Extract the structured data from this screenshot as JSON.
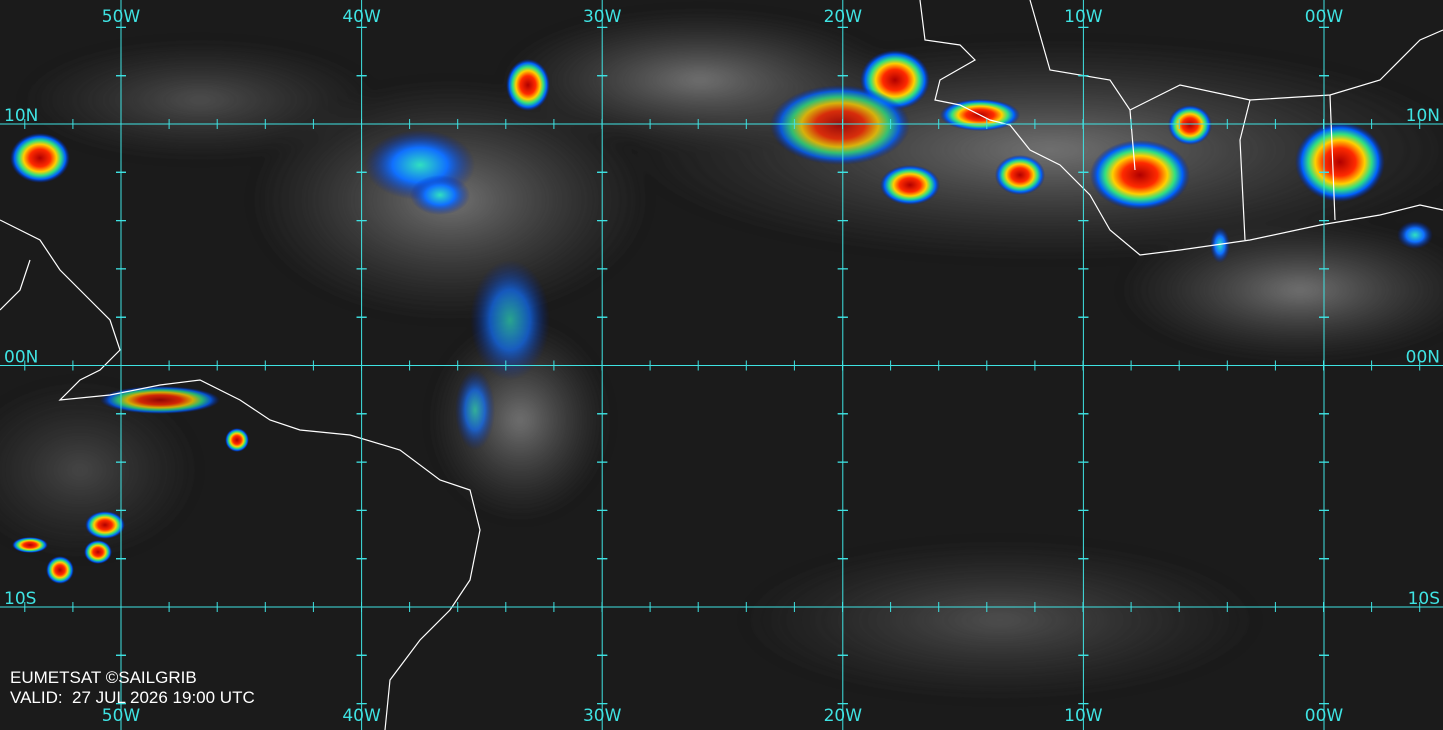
{
  "grid": {
    "longitudes": [
      "50W",
      "40W",
      "30W",
      "20W",
      "10W",
      "00W"
    ],
    "latitudes": [
      "10N",
      "00N",
      "10S"
    ]
  },
  "credit": "EUMETSAT ©SAILGRIB",
  "valid": "VALID:  27 JUL 2026 19:00 UTC"
}
